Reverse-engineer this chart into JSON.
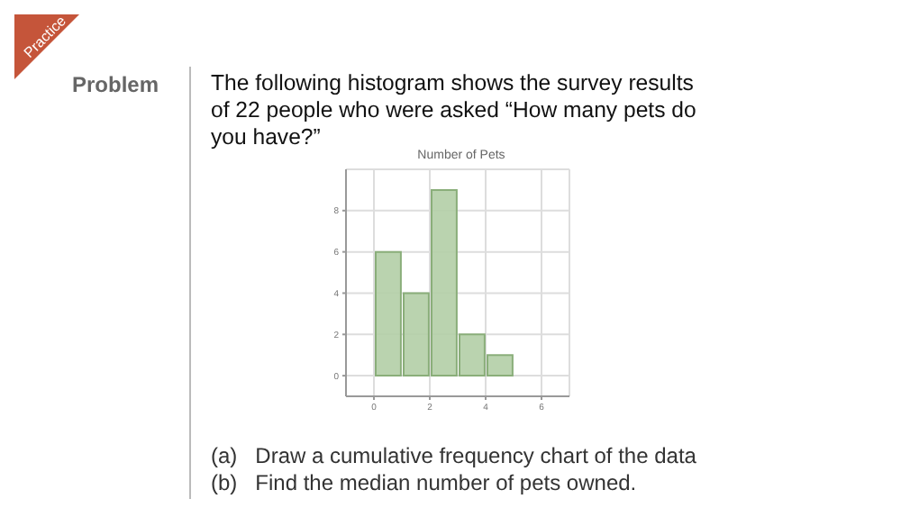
{
  "chart_data": {
    "type": "histogram",
    "title": "Number of Pets",
    "bins": [
      0,
      1,
      2,
      3,
      4,
      5
    ],
    "values": [
      6,
      4,
      9,
      2,
      1
    ],
    "color": "#b3cea6",
    "xlim": [
      -1,
      7
    ],
    "xticks": [
      0,
      2,
      4,
      6
    ],
    "ylim": [
      -1,
      10
    ],
    "yticks": [
      0,
      2,
      4,
      6,
      8
    ],
    "grid": true,
    "annotations": [
      "Practice",
      "Problem",
      "The following histogram shows the survey results of 22 people who were asked “How many pets do you have?”",
      "(a)   Draw a cumulative frequency chart of the data",
      "(b)   Find the median number of pets owned."
    ]
  }
}
